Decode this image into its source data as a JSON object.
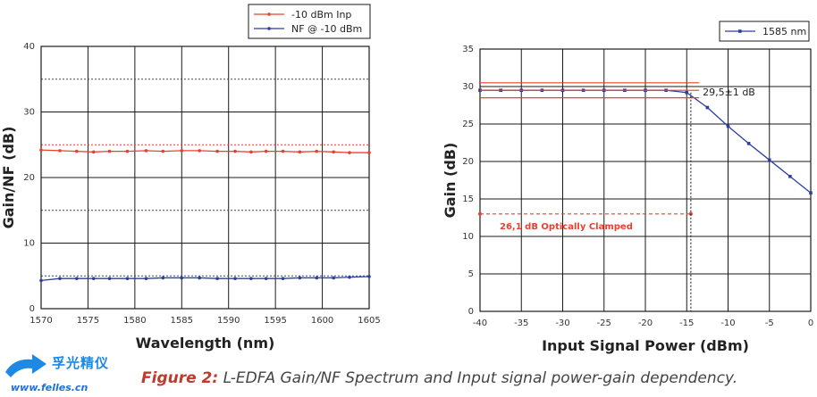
{
  "chart_data": [
    {
      "type": "line",
      "title": "",
      "xlabel": "Wavelength (nm)",
      "ylabel": "Gain/NF (dB)",
      "xlim": [
        1570,
        1605
      ],
      "ylim": [
        0,
        40
      ],
      "xticks": [
        1570,
        1575,
        1580,
        1585,
        1590,
        1595,
        1600,
        1605
      ],
      "yticks": [
        0,
        10,
        20,
        30,
        40
      ],
      "grid": true,
      "legend": "top-right",
      "series": [
        {
          "name": "-10 dBm Inp",
          "color": "#e8422e",
          "x": [
            1570,
            1572,
            1573.8,
            1575.6,
            1577.3,
            1579.2,
            1581.2,
            1583,
            1585,
            1586.9,
            1588.8,
            1590.7,
            1592.4,
            1594,
            1595.8,
            1597.6,
            1599.4,
            1601.2,
            1602.9,
            1605
          ],
          "y": [
            24.2,
            24.1,
            24.0,
            23.9,
            24.0,
            24.0,
            24.1,
            24.0,
            24.1,
            24.1,
            24.0,
            24.0,
            23.9,
            24.0,
            24.0,
            23.9,
            24.0,
            23.9,
            23.8,
            23.8
          ]
        },
        {
          "name": "NF @ -10 dBm",
          "color": "#2c3e9e",
          "x": [
            1570,
            1572,
            1573.8,
            1575.6,
            1577.3,
            1579.2,
            1581.2,
            1583,
            1585,
            1586.9,
            1588.8,
            1590.7,
            1592.4,
            1594,
            1595.8,
            1597.6,
            1599.4,
            1601.2,
            1602.9,
            1605
          ],
          "y": [
            4.3,
            4.6,
            4.6,
            4.6,
            4.6,
            4.6,
            4.6,
            4.7,
            4.7,
            4.7,
            4.6,
            4.6,
            4.6,
            4.6,
            4.6,
            4.7,
            4.7,
            4.7,
            4.8,
            4.9
          ]
        }
      ],
      "reference_lines": [
        {
          "y": 35,
          "style": "dotted"
        },
        {
          "y": 25,
          "style": "dotted",
          "color": "#e8422e"
        },
        {
          "y": 15,
          "style": "dotted"
        },
        {
          "y": 5,
          "style": "dotted",
          "color": "#2c3e9e"
        }
      ]
    },
    {
      "type": "line",
      "title": "",
      "xlabel": "Input Signal Power (dBm)",
      "ylabel": "Gain (dB)",
      "xlim": [
        -40,
        0
      ],
      "ylim": [
        0,
        35
      ],
      "xticks": [
        -40,
        -35,
        -30,
        -25,
        -20,
        -15,
        -10,
        -5,
        0
      ],
      "yticks": [
        0,
        5,
        10,
        15,
        20,
        25,
        30,
        35
      ],
      "grid": true,
      "legend": "top-right",
      "series": [
        {
          "name": "1585 nm",
          "color": "#2c3e9e",
          "x": [
            -40,
            -37.5,
            -35,
            -32.5,
            -30,
            -27.5,
            -25,
            -22.5,
            -20,
            -17.5,
            -15,
            -12.5,
            -10,
            -7.5,
            -5,
            -2.5,
            0
          ],
          "y": [
            29.5,
            29.5,
            29.5,
            29.5,
            29.5,
            29.5,
            29.5,
            29.5,
            29.5,
            29.5,
            29.2,
            27.2,
            24.7,
            22.4,
            20.2,
            18.0,
            15.8
          ]
        }
      ],
      "band": {
        "center": 29.5,
        "lower": 28.5,
        "upper": 30.5,
        "x_from": -40,
        "x_to": -13.5,
        "label": "29,5±1 dB",
        "color": "#e8422e"
      },
      "clamp_line": {
        "y": 13,
        "x_from": -40,
        "x_to": -14.5,
        "label": "26,1 dB Optically Clamped",
        "color": "#e8422e"
      },
      "vertical_marker": {
        "x": -14.5
      }
    }
  ],
  "caption": {
    "prefix": "Figure 2:",
    "text": " L-EDFA Gain/NF Spectrum and Input signal power-gain dependency."
  },
  "logo": {
    "chinese": "孚光精仪",
    "url": "www.felles.cn"
  }
}
